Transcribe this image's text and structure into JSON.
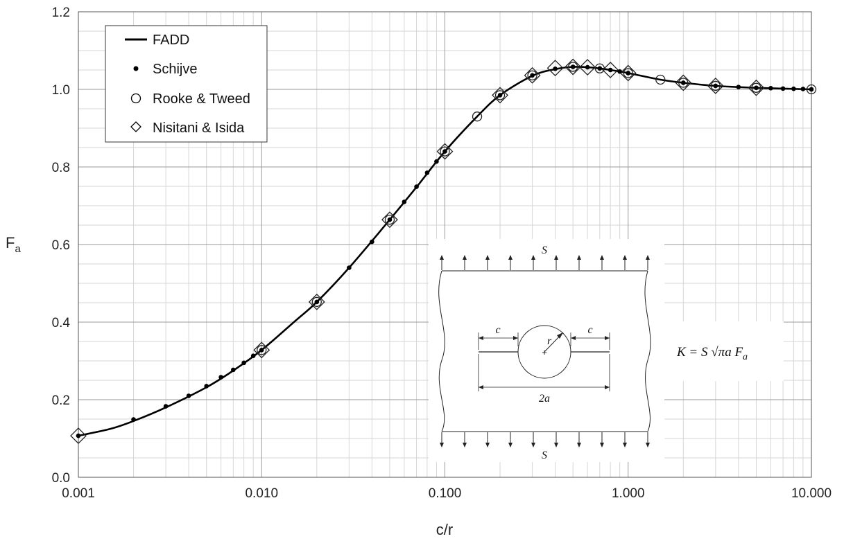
{
  "chart_data": {
    "type": "scatter",
    "xlabel": "c/r",
    "ylabel_main": "F",
    "ylabel_sub": "a",
    "x_scale": "log",
    "xlim": [
      0.001,
      10
    ],
    "ylim": [
      0,
      1.2
    ],
    "grid": true,
    "x_tick_labels": [
      "0.001",
      "0.010",
      "0.100",
      "1.000",
      "10.000"
    ],
    "x_tick_values": [
      0.001,
      0.01,
      0.1,
      1,
      10
    ],
    "y_tick_labels": [
      "0.0",
      "0.2",
      "0.4",
      "0.6",
      "0.8",
      "1.0",
      "1.2"
    ],
    "y_tick_values": [
      0,
      0.2,
      0.4,
      0.6,
      0.8,
      1.0,
      1.2
    ],
    "legend_position": "top-left",
    "series": [
      {
        "name": "FADD",
        "style": "line",
        "x": [
          0.001,
          0.0015,
          0.002,
          0.003,
          0.005,
          0.007,
          0.01,
          0.015,
          0.02,
          0.03,
          0.05,
          0.07,
          0.1,
          0.15,
          0.2,
          0.3,
          0.4,
          0.5,
          0.6,
          0.7,
          0.8,
          1.0,
          1.5,
          2,
          3,
          5,
          10
        ],
        "y": [
          0.107,
          0.125,
          0.145,
          0.18,
          0.232,
          0.275,
          0.328,
          0.4,
          0.452,
          0.54,
          0.664,
          0.748,
          0.84,
          0.93,
          0.985,
          1.035,
          1.052,
          1.058,
          1.057,
          1.054,
          1.05,
          1.042,
          1.025,
          1.017,
          1.009,
          1.004,
          1.0
        ]
      },
      {
        "name": "Schijve",
        "style": "dot",
        "x": [
          0.001,
          0.002,
          0.003,
          0.004,
          0.005,
          0.006,
          0.007,
          0.008,
          0.009,
          0.01,
          0.02,
          0.03,
          0.04,
          0.05,
          0.06,
          0.07,
          0.08,
          0.09,
          0.1,
          0.2,
          0.3,
          0.4,
          0.5,
          0.6,
          0.7,
          0.8,
          0.9,
          1.0,
          2,
          3,
          4,
          5,
          6,
          7,
          8,
          9,
          10
        ],
        "y": [
          0.107,
          0.149,
          0.183,
          0.21,
          0.235,
          0.258,
          0.277,
          0.295,
          0.313,
          0.328,
          0.452,
          0.54,
          0.607,
          0.664,
          0.71,
          0.749,
          0.785,
          0.814,
          0.84,
          0.985,
          1.036,
          1.053,
          1.058,
          1.057,
          1.054,
          1.05,
          1.046,
          1.042,
          1.017,
          1.009,
          1.006,
          1.004,
          1.003,
          1.002,
          1.0015,
          1.001,
          1.0
        ]
      },
      {
        "name": "Rooke & Tweed",
        "style": "circle",
        "x": [
          0.01,
          0.02,
          0.05,
          0.1,
          0.15,
          0.2,
          0.3,
          0.5,
          0.7,
          1.0,
          1.5,
          2,
          3,
          5,
          10
        ],
        "y": [
          0.328,
          0.452,
          0.664,
          0.84,
          0.93,
          0.985,
          1.036,
          1.058,
          1.054,
          1.042,
          1.025,
          1.017,
          1.009,
          1.004,
          1.0
        ]
      },
      {
        "name": "Nisitani & Isida",
        "style": "diamond",
        "x": [
          0.001,
          0.01,
          0.02,
          0.05,
          0.1,
          0.2,
          0.3,
          0.4,
          0.5,
          0.6,
          0.8,
          1.0,
          2,
          3,
          5
        ],
        "y": [
          0.107,
          0.328,
          0.452,
          0.664,
          0.84,
          0.985,
          1.036,
          1.055,
          1.058,
          1.057,
          1.05,
          1.042,
          1.017,
          1.009,
          1.004
        ]
      }
    ]
  },
  "inset": {
    "top_label": "S",
    "bottom_label": "S",
    "c_left": "c",
    "c_right": "c",
    "r_label": "r",
    "two_a": "2a",
    "formula": "K = S √πa F",
    "formula_sub": "a"
  }
}
